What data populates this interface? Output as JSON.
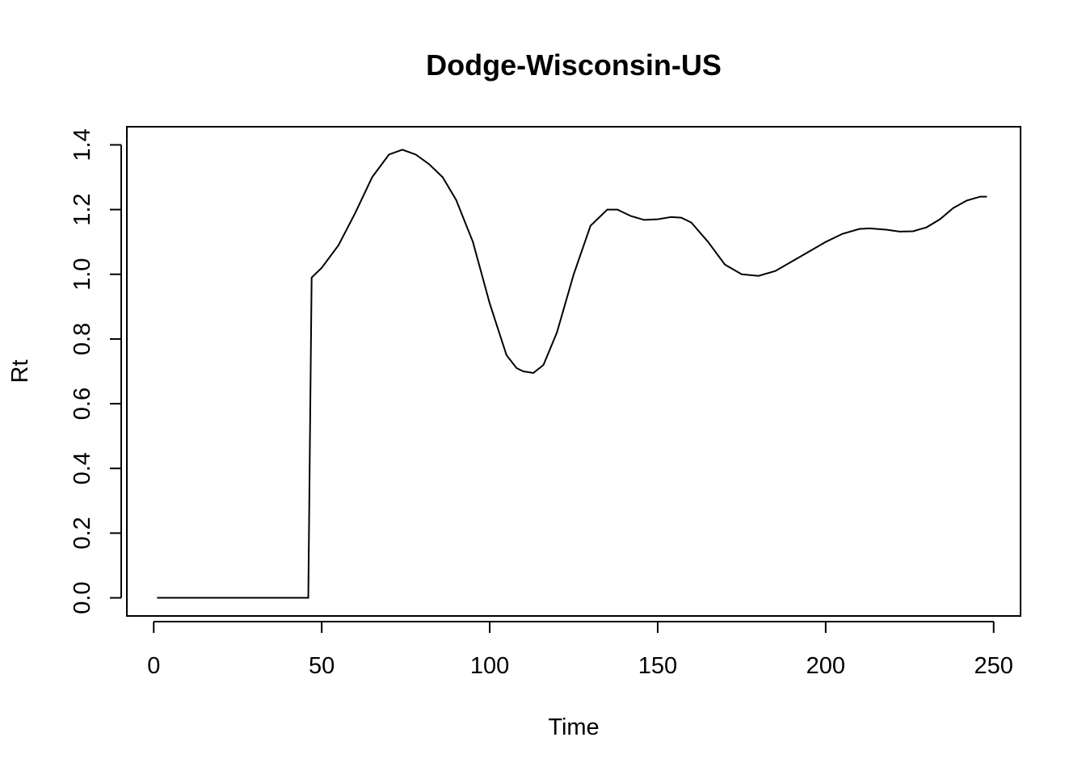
{
  "chart_data": {
    "type": "line",
    "title": "Dodge-Wisconsin-US",
    "xlabel": "Time",
    "ylabel": "Rt",
    "xlim": [
      -8,
      258
    ],
    "ylim": [
      -0.056,
      1.456
    ],
    "xticks": [
      0,
      50,
      100,
      150,
      200,
      250
    ],
    "yticks": [
      0.0,
      0.2,
      0.4,
      0.6,
      0.8,
      1.0,
      1.2,
      1.4
    ],
    "ytick_labels": [
      "0.0",
      "0.2",
      "0.4",
      "0.6",
      "0.8",
      "1.0",
      "1.2",
      "1.4"
    ],
    "grid": false,
    "legend": "none",
    "colors": {
      "line": "#000000",
      "frame": "#000000"
    },
    "series": [
      {
        "x": [
          1,
          10,
          20,
          30,
          40,
          46,
          47,
          50,
          55,
          60,
          65,
          70,
          74,
          78,
          82,
          86,
          90,
          95,
          100,
          105,
          108,
          110,
          113,
          116,
          120,
          125,
          130,
          135,
          138,
          142,
          146,
          150,
          154,
          157,
          160,
          165,
          170,
          175,
          180,
          185,
          190,
          195,
          200,
          205,
          210,
          213,
          218,
          222,
          226,
          230,
          234,
          238,
          242,
          246,
          248
        ],
        "y": [
          0.0,
          0.0,
          0.0,
          0.0,
          0.0,
          0.0,
          0.99,
          1.02,
          1.09,
          1.19,
          1.3,
          1.37,
          1.385,
          1.37,
          1.34,
          1.3,
          1.23,
          1.1,
          0.91,
          0.75,
          0.71,
          0.7,
          0.695,
          0.72,
          0.82,
          1.0,
          1.15,
          1.2,
          1.2,
          1.18,
          1.168,
          1.17,
          1.177,
          1.175,
          1.16,
          1.1,
          1.03,
          1.0,
          0.995,
          1.01,
          1.04,
          1.07,
          1.1,
          1.125,
          1.14,
          1.142,
          1.138,
          1.132,
          1.133,
          1.145,
          1.17,
          1.205,
          1.228,
          1.24,
          1.24
        ]
      }
    ]
  }
}
